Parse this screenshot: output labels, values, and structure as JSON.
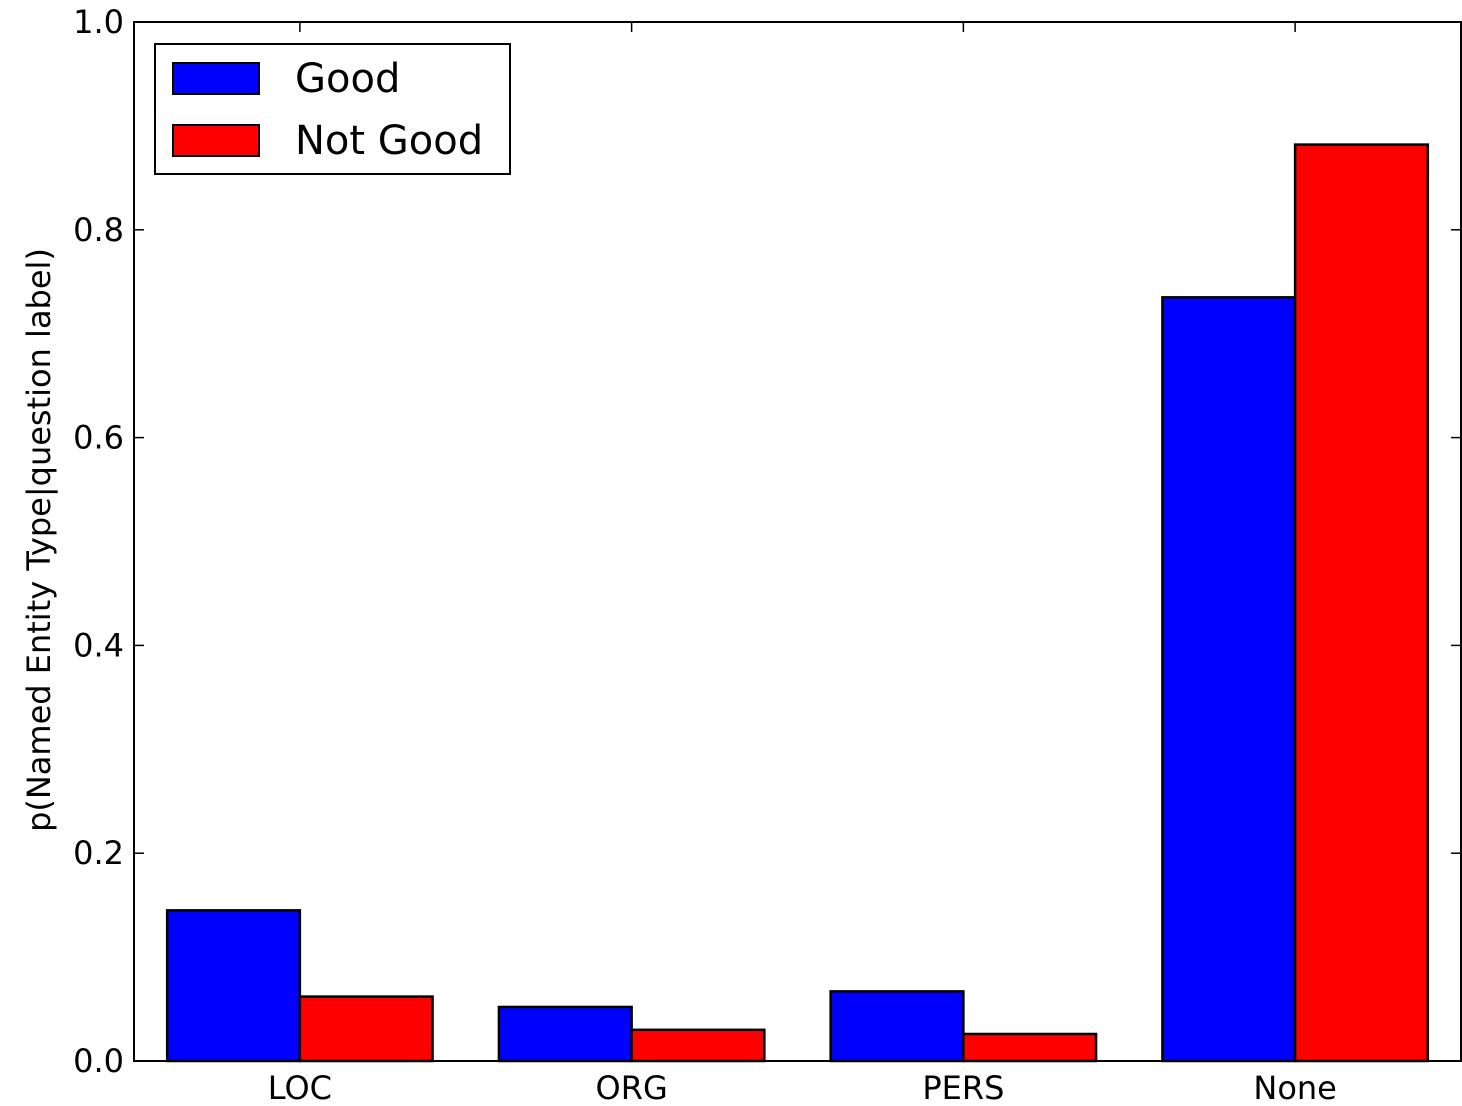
{
  "chart_data": {
    "type": "bar",
    "title": "",
    "xlabel": "",
    "ylabel": "p(Named Entity Type|question label)",
    "categories": [
      "LOC",
      "ORG",
      "PERS",
      "None"
    ],
    "series": [
      {
        "name": "Good",
        "color": "#0000ff",
        "values": [
          0.145,
          0.052,
          0.067,
          0.735
        ]
      },
      {
        "name": "Not Good",
        "color": "#ff0000",
        "values": [
          0.062,
          0.03,
          0.026,
          0.882
        ]
      }
    ],
    "ylim": [
      0.0,
      1.0
    ],
    "yticks": [
      "0.0",
      "0.2",
      "0.4",
      "0.6",
      "0.8",
      "1.0"
    ],
    "grid": false,
    "legend_position": "top-left"
  }
}
